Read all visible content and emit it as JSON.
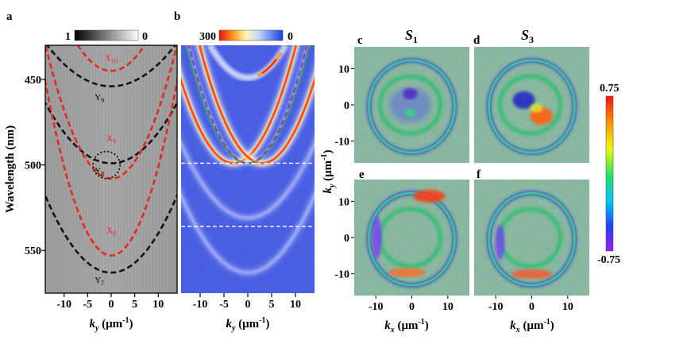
{
  "figure": {
    "panel_labels": {
      "a": "a",
      "b": "b",
      "c": "c",
      "d": "d",
      "e": "e",
      "f": "f"
    },
    "titles": {
      "c_base": "S",
      "c_sub": "1",
      "d_base": "S",
      "d_sub": "3"
    }
  },
  "colorbars": {
    "a": {
      "min": "1",
      "max": "0"
    },
    "b": {
      "min": "300",
      "max": "0"
    },
    "polar": {
      "top": "0.75",
      "bottom": "-0.75"
    }
  },
  "axes": {
    "wavelength_label": "Wavelength (nm)",
    "ky_base": "k",
    "ky_sub": "y",
    "ky_unit": " (μm",
    "ky_exp": "-1",
    "ky_close": ")",
    "kx_base": "k",
    "kx_sub": "x",
    "kx_unit": " (μm",
    "kx_exp": "-1",
    "kx_close": ")",
    "ky_right_base": "k",
    "ky_right_sub": "y",
    "ky_right_unit": " (μm",
    "ky_right_exp": "-1",
    "ky_right_close": ")"
  },
  "chart_data": [
    {
      "type": "line",
      "panel": "a",
      "title": "",
      "xlabel": "k_y (μm^-1)",
      "ylabel": "Wavelength (nm)",
      "xlim": [
        -14,
        14
      ],
      "ylim": [
        575,
        430
      ],
      "x_ticks": [
        -10,
        -5,
        0,
        5,
        10
      ],
      "x_tick_labels": [
        "-10",
        "-5",
        "0",
        "5",
        "10"
      ],
      "y_ticks": [
        450,
        500,
        550
      ],
      "y_tick_labels": [
        "450",
        "500",
        "550"
      ],
      "series": [
        {
          "name": "Y9",
          "label": "Y",
          "sub": "9",
          "color": "#111111",
          "apex_k": 0,
          "apex_wl": 454,
          "curv": 0.13
        },
        {
          "name": "Y8",
          "label": "Y",
          "sub": "8",
          "color": "#111111",
          "apex_k": 0,
          "apex_wl": 499,
          "curv": 0.18
        },
        {
          "name": "Y7",
          "label": "Y",
          "sub": "7",
          "color": "#111111",
          "apex_k": 0,
          "apex_wl": 563,
          "curv": 0.23
        },
        {
          "name": "X10",
          "label": "X",
          "sub": "10",
          "color": "#e8271f",
          "apex_k": 0,
          "apex_wl": 445,
          "curv": 0.3
        },
        {
          "name": "X9",
          "label": "X",
          "sub": "9",
          "color": "#e8271f",
          "apex_k": 0,
          "apex_wl": 508,
          "curv": 0.4
        },
        {
          "name": "X8",
          "label": "X",
          "sub": "8",
          "color": "#e8271f",
          "apex_k": 0,
          "apex_wl": 553,
          "curv": 0.52
        }
      ],
      "annotation": {
        "type": "dotted-circle",
        "k": -1,
        "wl": 500
      }
    },
    {
      "type": "heatmap",
      "panel": "b",
      "xlabel": "k_y (μm^-1)",
      "xlim": [
        -14,
        14
      ],
      "ylim": [
        575,
        430
      ],
      "x_ticks": [
        -10,
        -5,
        0,
        5,
        10
      ],
      "x_tick_labels": [
        "-10",
        "-5",
        "0",
        "5",
        "10"
      ],
      "colorbar_range": [
        300,
        0
      ],
      "guide_lines_wl": [
        499,
        536
      ],
      "dashed_fits": [
        {
          "color": "#2aa04a",
          "apex_k": 0,
          "apex_wl": 499,
          "curv": 0.4
        },
        {
          "color": "#7b4c8a",
          "apex_k": 0,
          "apex_wl": 499,
          "curv": 0.45
        }
      ]
    },
    {
      "type": "heatmap",
      "panels": [
        "c",
        "d",
        "e",
        "f"
      ],
      "xlabel": "k_x (μm^-1)",
      "ylabel": "k_y (μm^-1)",
      "xlim": [
        -16,
        16
      ],
      "ylim": [
        -16,
        16
      ],
      "x_ticks": [
        -10,
        0,
        10
      ],
      "x_tick_labels": [
        "-10",
        "0",
        "10"
      ],
      "y_ticks": [
        10,
        0,
        -10
      ],
      "y_tick_labels": [
        "10",
        "0",
        "-10"
      ],
      "colorbar_range": [
        -0.75,
        0.75
      ]
    }
  ]
}
